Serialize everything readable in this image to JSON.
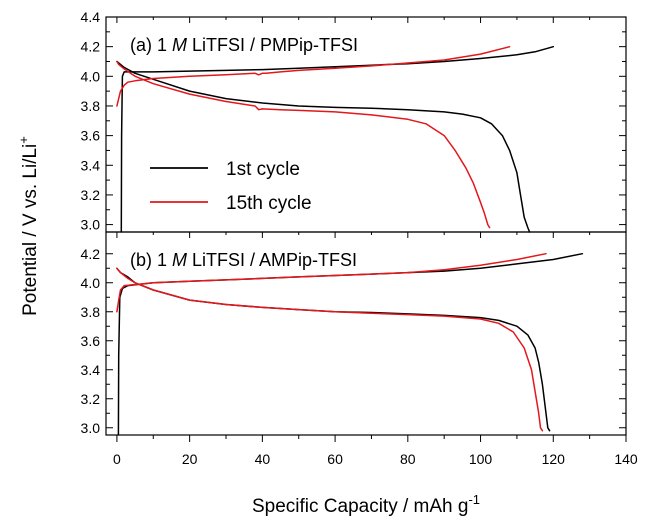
{
  "chart_data": {
    "type": "line",
    "xlabel": "Specific Capacity / mAh g",
    "xlabel_sup": "-1",
    "ylabel": "Potential / V vs. Li/Li",
    "ylabel_sup": "+",
    "xlim": [
      -3,
      140
    ],
    "x_ticks": [
      0,
      20,
      40,
      60,
      80,
      100,
      120,
      140
    ],
    "legend": {
      "placement": "lower-left of panel (a)",
      "entries": [
        {
          "label": "1st cycle",
          "color": "#000000"
        },
        {
          "label": "15th cycle",
          "color": "#e3171c"
        }
      ]
    },
    "panels": [
      {
        "id": "a",
        "label_prefix": "(a) 1 ",
        "label_italic": "M",
        "label_suffix": " LiTFSI / PMPip-TFSI",
        "ylim": [
          2.95,
          4.4
        ],
        "y_ticks": [
          3.0,
          3.2,
          3.4,
          3.6,
          3.8,
          4.0,
          4.2,
          4.4
        ],
        "series": [
          {
            "name": "1st cycle",
            "color": "#000000",
            "segments": [
              {
                "x": [
                  1.2,
                  1.3,
                  1.5,
                  2,
                  5,
                  10,
                  20,
                  30,
                  40,
                  50,
                  60,
                  70,
                  80,
                  90,
                  100,
                  110,
                  115,
                  120
                ],
                "y": [
                  2.95,
                  3.6,
                  4.0,
                  4.03,
                  4.03,
                  4.03,
                  4.035,
                  4.04,
                  4.045,
                  4.055,
                  4.065,
                  4.075,
                  4.085,
                  4.1,
                  4.12,
                  4.145,
                  4.165,
                  4.2
                ]
              },
              {
                "x": [
                  0,
                  0.5,
                  2,
                  5,
                  10,
                  20,
                  30,
                  40,
                  50,
                  60,
                  70,
                  80,
                  90,
                  95,
                  100,
                  103,
                  106,
                  108,
                  110,
                  111,
                  112,
                  113,
                  113.5
                ],
                "y": [
                  4.1,
                  4.09,
                  4.06,
                  4.02,
                  3.98,
                  3.9,
                  3.85,
                  3.82,
                  3.8,
                  3.79,
                  3.785,
                  3.775,
                  3.76,
                  3.745,
                  3.72,
                  3.68,
                  3.6,
                  3.5,
                  3.35,
                  3.2,
                  3.05,
                  2.98,
                  2.95
                ]
              }
            ]
          },
          {
            "name": "15th cycle",
            "color": "#e3171c",
            "segments": [
              {
                "x": [
                  0,
                  1,
                  2,
                  3,
                  5,
                  10,
                  20,
                  30,
                  38,
                  39,
                  40,
                  41,
                  45,
                  50,
                  60,
                  70,
                  80,
                  90,
                  100,
                  108
                ],
                "y": [
                  3.8,
                  3.9,
                  3.94,
                  3.96,
                  3.97,
                  3.985,
                  4.0,
                  4.01,
                  4.02,
                  4.01,
                  4.02,
                  4.02,
                  4.03,
                  4.04,
                  4.055,
                  4.07,
                  4.09,
                  4.11,
                  4.15,
                  4.2
                ]
              },
              {
                "x": [
                  0,
                  0.5,
                  2,
                  5,
                  10,
                  20,
                  30,
                  38,
                  39,
                  40,
                  45,
                  50,
                  60,
                  70,
                  80,
                  85,
                  90,
                  93,
                  96,
                  98,
                  100,
                  101,
                  102,
                  102.5
                ],
                "y": [
                  4.1,
                  4.08,
                  4.05,
                  4.0,
                  3.95,
                  3.88,
                  3.83,
                  3.8,
                  3.775,
                  3.78,
                  3.775,
                  3.77,
                  3.76,
                  3.74,
                  3.71,
                  3.68,
                  3.6,
                  3.5,
                  3.38,
                  3.28,
                  3.15,
                  3.08,
                  3.0,
                  2.98
                ]
              }
            ]
          }
        ]
      },
      {
        "id": "b",
        "label_prefix": "(b) 1 ",
        "label_italic": "M",
        "label_suffix": " LiTFSI / AMPip-TFSI",
        "ylim": [
          2.95,
          4.35
        ],
        "y_ticks": [
          3.0,
          3.2,
          3.4,
          3.6,
          3.8,
          4.0,
          4.2
        ],
        "series": [
          {
            "name": "1st cycle",
            "color": "#000000",
            "segments": [
              {
                "x": [
                  0.4,
                  0.5,
                  0.8,
                  1.5,
                  3,
                  10,
                  20,
                  30,
                  40,
                  50,
                  60,
                  70,
                  80,
                  90,
                  100,
                  110,
                  120,
                  128
                ],
                "y": [
                  2.95,
                  3.5,
                  3.9,
                  3.96,
                  3.98,
                  4.0,
                  4.01,
                  4.02,
                  4.03,
                  4.04,
                  4.05,
                  4.06,
                  4.07,
                  4.08,
                  4.1,
                  4.13,
                  4.16,
                  4.2
                ]
              },
              {
                "x": [
                  0,
                  1,
                  3,
                  5,
                  10,
                  20,
                  30,
                  40,
                  50,
                  60,
                  70,
                  80,
                  90,
                  100,
                  105,
                  110,
                  113,
                  115,
                  116,
                  117,
                  118,
                  118.5,
                  119
                ],
                "y": [
                  4.1,
                  4.07,
                  4.04,
                  4.0,
                  3.95,
                  3.88,
                  3.85,
                  3.83,
                  3.815,
                  3.8,
                  3.795,
                  3.785,
                  3.775,
                  3.76,
                  3.74,
                  3.7,
                  3.64,
                  3.55,
                  3.45,
                  3.3,
                  3.1,
                  3.0,
                  2.98
                ]
              }
            ]
          },
          {
            "name": "15th cycle",
            "color": "#e3171c",
            "segments": [
              {
                "x": [
                  0,
                  0.5,
                  1,
                  2,
                  4,
                  6,
                  10,
                  20,
                  30,
                  40,
                  50,
                  60,
                  70,
                  80,
                  90,
                  100,
                  110,
                  118
                ],
                "y": [
                  3.8,
                  3.88,
                  3.95,
                  3.98,
                  3.985,
                  3.99,
                  4.0,
                  4.01,
                  4.02,
                  4.03,
                  4.04,
                  4.05,
                  4.06,
                  4.07,
                  4.09,
                  4.12,
                  4.16,
                  4.2
                ]
              },
              {
                "x": [
                  0,
                  1,
                  3,
                  5,
                  10,
                  20,
                  30,
                  40,
                  50,
                  60,
                  70,
                  80,
                  90,
                  100,
                  105,
                  109,
                  112,
                  114,
                  115,
                  116,
                  116.5,
                  117
                ],
                "y": [
                  4.1,
                  4.07,
                  4.03,
                  4.0,
                  3.95,
                  3.88,
                  3.85,
                  3.83,
                  3.815,
                  3.8,
                  3.79,
                  3.78,
                  3.77,
                  3.75,
                  3.72,
                  3.66,
                  3.55,
                  3.4,
                  3.25,
                  3.1,
                  3.0,
                  2.98
                ]
              }
            ]
          }
        ]
      }
    ]
  }
}
